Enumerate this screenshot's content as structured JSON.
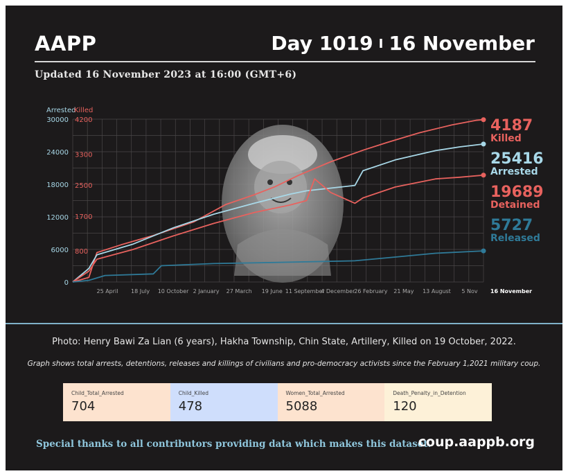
{
  "header": {
    "org": "AAPP",
    "day": "Day 1019",
    "separator": "I",
    "date": "16 November",
    "updated": "Updated 16 November 2023 at 16:00 (GMT+6)"
  },
  "colors": {
    "background": "#1c1a1b",
    "killed": "#e8625e",
    "arrested": "#a8d8e8",
    "detained": "#e8625e",
    "released": "#2f7a98",
    "grid": "#4a4748",
    "axis_text": "#a9a9a9",
    "card_orange": "#fde3cf",
    "card_blue": "#cfdefc",
    "card_cream": "#fdf1d8"
  },
  "chart_data": {
    "type": "line",
    "left_axis_title": "Arrested",
    "right_axis_title": "Killed",
    "left_ticks": [
      "30000",
      "24000",
      "18000",
      "12000",
      "6000",
      "0"
    ],
    "left_tick_values": [
      30000,
      24000,
      18000,
      12000,
      6000,
      0
    ],
    "right_ticks": [
      "4200",
      "3300",
      "2500",
      "1700",
      "800"
    ],
    "right_tick_values": [
      4200,
      3300,
      2500,
      1700,
      800
    ],
    "x_ticks": [
      "25 April",
      "18 July",
      "10 October",
      "2 January",
      "27 March",
      "19 June",
      "11 September",
      "4 December",
      "26 February",
      "21 May",
      "13 August",
      "5 Nov"
    ],
    "x_end_label": "16 November",
    "x_range": [
      0,
      1019
    ],
    "ylim_left": [
      0,
      30000
    ],
    "ylim_right": [
      0,
      4200
    ],
    "grid": true,
    "series": [
      {
        "name": "Killed",
        "axis": "right",
        "color": "#e8625e",
        "end_value": "4187",
        "x": [
          0,
          40,
          60,
          120,
          200,
          300,
          380,
          450,
          500,
          560,
          640,
          720,
          780,
          860,
          940,
          1000,
          1019
        ],
        "values": [
          0,
          120,
          760,
          960,
          1200,
          1550,
          2000,
          2250,
          2450,
          2750,
          3100,
          3400,
          3600,
          3850,
          4050,
          4170,
          4187
        ]
      },
      {
        "name": "Arrested",
        "axis": "left",
        "color": "#a8d8e8",
        "end_value": "25416",
        "x": [
          0,
          40,
          60,
          150,
          250,
          350,
          450,
          540,
          580,
          640,
          700,
          720,
          800,
          900,
          960,
          1019
        ],
        "values": [
          0,
          2500,
          5000,
          7000,
          10000,
          12500,
          14500,
          16200,
          16800,
          17300,
          17800,
          20500,
          22500,
          24200,
          24900,
          25416
        ]
      },
      {
        "name": "Detained",
        "axis": "left",
        "color": "#e8625e",
        "end_value": "19689",
        "x": [
          0,
          40,
          60,
          150,
          250,
          350,
          450,
          540,
          580,
          600,
          640,
          700,
          720,
          800,
          900,
          960,
          1019
        ],
        "values": [
          0,
          2000,
          4200,
          6000,
          8500,
          10800,
          12800,
          14200,
          15000,
          19000,
          16500,
          14500,
          15500,
          17500,
          19000,
          19300,
          19689
        ]
      },
      {
        "name": "Released",
        "axis": "left",
        "color": "#2f7a98",
        "end_value": "5727",
        "x": [
          0,
          40,
          80,
          200,
          220,
          350,
          500,
          700,
          800,
          900,
          1019
        ],
        "values": [
          0,
          300,
          1200,
          1500,
          3000,
          3400,
          3600,
          3900,
          4600,
          5300,
          5727
        ]
      }
    ]
  },
  "legend_words": {
    "killed": "Killed",
    "arrested": "Arrested",
    "detained": "Detained",
    "released": "Released"
  },
  "photo_credit": "Photo: Henry Bawi Za Lian (6 years), Hakha Township, Chin State, Artillery, Killed on 19 October, 2022.",
  "note": "Graph shows total arrests, detentions, releases and killings of civilians and pro-democracy activists since the February 1,2021 military coup.",
  "stats": [
    {
      "label": "Child_Total_Arrested",
      "value": "704"
    },
    {
      "label": "Child_Killed",
      "value": "478"
    },
    {
      "label": "Women_Total_Arrested",
      "value": "5088"
    },
    {
      "label": "Death_Penalty_in_Detention",
      "value": "120"
    }
  ],
  "footer": {
    "thanks": "Special thanks to all contributors providing data which makes this dataset.",
    "site": "coup.aappb.org"
  }
}
